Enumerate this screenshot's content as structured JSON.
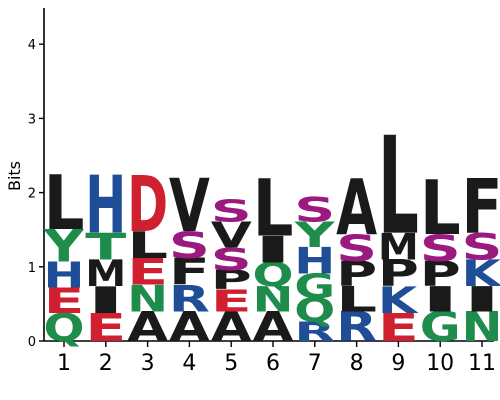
{
  "chart_data": {
    "type": "sequence-logo",
    "ylabel": "Bits",
    "ylim": [
      0,
      4.5
    ],
    "yticks": [
      "0",
      "1",
      "2",
      "3",
      "4"
    ],
    "grid": false,
    "legend": "none",
    "positions": [
      "1",
      "2",
      "3",
      "4",
      "5",
      "6",
      "7",
      "8",
      "9",
      "10",
      "11"
    ],
    "colors": {
      "black": "#1a1a1a",
      "blue": "#1f4e96",
      "red": "#d0202f",
      "green": "#1e8c4a",
      "purple": "#9a1a7f"
    },
    "residue_color": {
      "L": "black",
      "D": "red",
      "V": "black",
      "A": "black",
      "F": "black",
      "I": "black",
      "M": "black",
      "P": "black",
      "W": "black",
      "H": "blue",
      "K": "blue",
      "R": "blue",
      "E": "red",
      "Y": "green",
      "T": "green",
      "N": "green",
      "Q": "green",
      "G": "green",
      "C": "green",
      "S": "purple"
    },
    "stacks": [
      [
        {
          "letter": "Q",
          "bits": 0.38
        },
        {
          "letter": "E",
          "bits": 0.34
        },
        {
          "letter": "H",
          "bits": 0.35
        },
        {
          "letter": "Y",
          "bits": 0.44
        },
        {
          "letter": "L",
          "bits": 0.74
        }
      ],
      [
        {
          "letter": "E",
          "bits": 0.38
        },
        {
          "letter": "I",
          "bits": 0.36
        },
        {
          "letter": "M",
          "bits": 0.36
        },
        {
          "letter": "T",
          "bits": 0.36
        },
        {
          "letter": "H",
          "bits": 0.78
        }
      ],
      [
        {
          "letter": "A",
          "bits": 0.4
        },
        {
          "letter": "N",
          "bits": 0.36
        },
        {
          "letter": "E",
          "bits": 0.36
        },
        {
          "letter": "L",
          "bits": 0.36
        },
        {
          "letter": "D",
          "bits": 0.75
        }
      ],
      [
        {
          "letter": "A",
          "bits": 0.4
        },
        {
          "letter": "R",
          "bits": 0.36
        },
        {
          "letter": "F",
          "bits": 0.36
        },
        {
          "letter": "S",
          "bits": 0.36
        },
        {
          "letter": "V",
          "bits": 0.72
        }
      ],
      [
        {
          "letter": "A",
          "bits": 0.4
        },
        {
          "letter": "E",
          "bits": 0.3
        },
        {
          "letter": "P",
          "bits": 0.26
        },
        {
          "letter": "S",
          "bits": 0.3
        },
        {
          "letter": "V",
          "bits": 0.35
        },
        {
          "letter": "S",
          "bits": 0.3
        }
      ],
      [
        {
          "letter": "A",
          "bits": 0.4
        },
        {
          "letter": "N",
          "bits": 0.34
        },
        {
          "letter": "Q",
          "bits": 0.32
        },
        {
          "letter": "I",
          "bits": 0.36
        },
        {
          "letter": "L",
          "bits": 0.77
        }
      ],
      [
        {
          "letter": "R",
          "bits": 0.26
        },
        {
          "letter": "Q",
          "bits": 0.32
        },
        {
          "letter": "G",
          "bits": 0.33
        },
        {
          "letter": "H",
          "bits": 0.36
        },
        {
          "letter": "Y",
          "bits": 0.34
        },
        {
          "letter": "S",
          "bits": 0.33
        }
      ],
      [
        {
          "letter": "R",
          "bits": 0.4
        },
        {
          "letter": "L",
          "bits": 0.34
        },
        {
          "letter": "P",
          "bits": 0.34
        },
        {
          "letter": "S",
          "bits": 0.36
        },
        {
          "letter": "A",
          "bits": 0.75
        }
      ],
      [
        {
          "letter": "E",
          "bits": 0.38
        },
        {
          "letter": "K",
          "bits": 0.36
        },
        {
          "letter": "P",
          "bits": 0.36
        },
        {
          "letter": "M",
          "bits": 0.36
        },
        {
          "letter": "L",
          "bits": 1.32
        }
      ],
      [
        {
          "letter": "G",
          "bits": 0.4
        },
        {
          "letter": "I",
          "bits": 0.34
        },
        {
          "letter": "P",
          "bits": 0.34
        },
        {
          "letter": "S",
          "bits": 0.36
        },
        {
          "letter": "L",
          "bits": 0.74
        }
      ],
      [
        {
          "letter": "N",
          "bits": 0.4
        },
        {
          "letter": "I",
          "bits": 0.34
        },
        {
          "letter": "K",
          "bits": 0.36
        },
        {
          "letter": "S",
          "bits": 0.36
        },
        {
          "letter": "F",
          "bits": 0.74
        }
      ]
    ]
  }
}
